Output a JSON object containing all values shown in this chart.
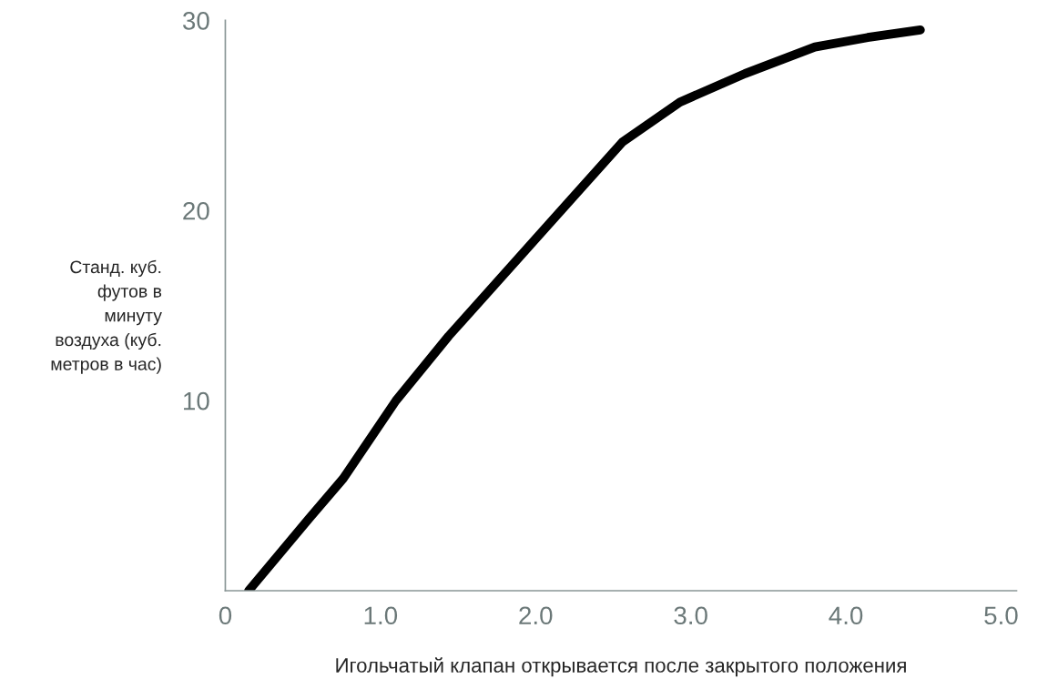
{
  "chart_data": {
    "type": "line",
    "xlabel": "Игольчатый клапан открывается после закрытого положения",
    "ylabel": "Станд. куб.\nфутов в\nминуту\nвоздуха (куб.\nметров в час)",
    "x": [
      0.15,
      0.54,
      0.76,
      1.1,
      1.44,
      1.89,
      2.23,
      2.56,
      2.93,
      3.35,
      3.8,
      4.14,
      4.48
    ],
    "series": [
      {
        "color": "#000000",
        "values": [
          0,
          3.8,
          5.9,
          10.0,
          13.4,
          17.5,
          20.6,
          23.6,
          25.7,
          27.2,
          28.6,
          29.1,
          29.5
        ]
      }
    ],
    "xlim": [
      0,
      5.1
    ],
    "ylim": [
      0,
      30
    ],
    "xticks": [
      0,
      {
        "value": 1,
        "label": "1.0"
      },
      {
        "value": 2,
        "label": "2.0"
      },
      {
        "value": 3,
        "label": "3.0"
      },
      {
        "value": 4,
        "label": "4.0"
      },
      {
        "value": 5,
        "label": "5.0"
      }
    ],
    "yticks": [
      10,
      20,
      30
    ],
    "grid": false,
    "legend": false,
    "marker": "none",
    "line_style": "solid"
  }
}
